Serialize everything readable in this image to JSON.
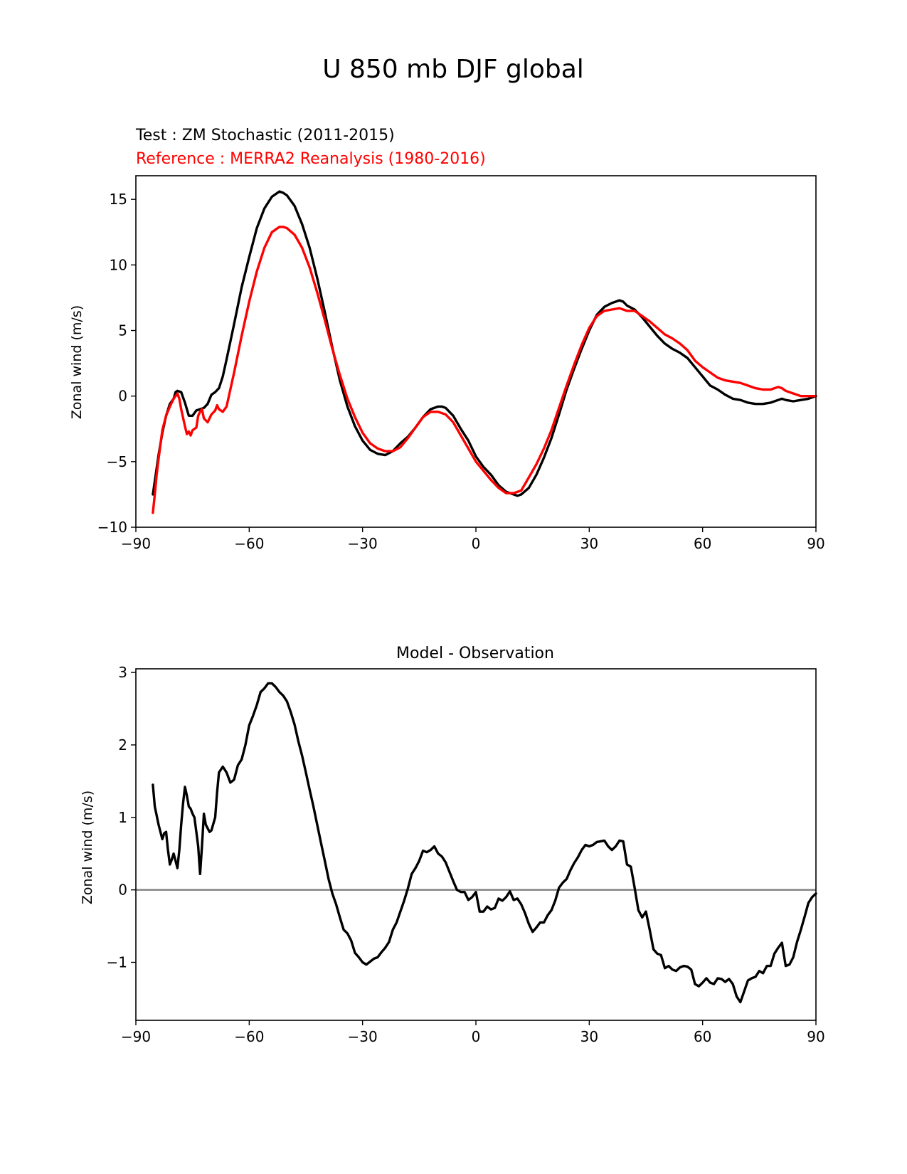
{
  "figure": {
    "title": "U 850 mb DJF global"
  },
  "chart_data": [
    {
      "type": "line",
      "title": "",
      "subtitle_test": "Test : ZM Stochastic (2011-2015)",
      "subtitle_reference": "Reference : MERRA2 Reanalysis (1980-2016)",
      "xlabel": "",
      "ylabel": "Zonal wind (m/s)",
      "xlim": [
        -90,
        90
      ],
      "ylim": [
        -10,
        16.8
      ],
      "xticks": [
        -90,
        -60,
        -30,
        0,
        30,
        60,
        90
      ],
      "xtick_labels": [
        "−90",
        "−60",
        "−30",
        "0",
        "30",
        "60",
        "90"
      ],
      "yticks": [
        -10,
        -5,
        0,
        5,
        10,
        15
      ],
      "ytick_labels": [
        "−10",
        "−5",
        "0",
        "5",
        "10",
        "15"
      ],
      "grid": false,
      "colors": {
        "test": "#000000",
        "reference": "#ff0000"
      },
      "series": [
        {
          "key": "test",
          "x": [
            -85.5,
            -85,
            -84,
            -83,
            -82,
            -81,
            -80,
            -79.5,
            -79,
            -78,
            -77,
            -76,
            -75,
            -74,
            -73,
            -72,
            -71,
            -70,
            -69,
            -68,
            -67,
            -66,
            -64,
            -62,
            -60,
            -58,
            -56,
            -54,
            -52,
            -51,
            -50,
            -48,
            -46,
            -44,
            -42,
            -40,
            -38,
            -36,
            -34,
            -32,
            -30,
            -28,
            -26,
            -24,
            -22,
            -21,
            -20,
            -18,
            -16,
            -14,
            -12,
            -10,
            -9,
            -8,
            -6,
            -4,
            -2,
            0,
            2,
            4,
            6,
            8,
            10,
            11,
            12,
            14,
            16,
            18,
            20,
            22,
            24,
            26,
            28,
            30,
            32,
            34,
            36,
            37,
            38,
            39,
            40,
            42,
            44,
            46,
            48,
            50,
            52,
            54,
            56,
            58,
            60,
            62,
            64,
            66,
            68,
            70,
            72,
            74,
            76,
            78,
            80,
            81,
            82,
            84,
            86,
            88,
            90
          ],
          "y": [
            -7.5,
            -6.5,
            -4.5,
            -2.8,
            -1.5,
            -0.6,
            -0.2,
            0.3,
            0.4,
            0.3,
            -0.5,
            -1.5,
            -1.5,
            -1.1,
            -1.0,
            -0.9,
            -0.6,
            0.1,
            0.3,
            0.6,
            1.5,
            2.8,
            5.5,
            8.3,
            10.6,
            12.8,
            14.3,
            15.2,
            15.6,
            15.5,
            15.3,
            14.5,
            13.1,
            11.3,
            9.0,
            6.4,
            3.7,
            1.2,
            -0.8,
            -2.3,
            -3.4,
            -4.1,
            -4.4,
            -4.5,
            -4.2,
            -3.9,
            -3.6,
            -3.1,
            -2.4,
            -1.6,
            -1.0,
            -0.8,
            -0.8,
            -0.9,
            -1.5,
            -2.5,
            -3.4,
            -4.6,
            -5.4,
            -6.0,
            -6.8,
            -7.3,
            -7.5,
            -7.6,
            -7.5,
            -7.0,
            -6.0,
            -4.7,
            -3.2,
            -1.4,
            0.5,
            2.1,
            3.6,
            5.0,
            6.2,
            6.8,
            7.1,
            7.2,
            7.3,
            7.2,
            6.9,
            6.6,
            6.0,
            5.3,
            4.6,
            4.0,
            3.6,
            3.3,
            2.9,
            2.2,
            1.5,
            0.8,
            0.5,
            0.1,
            -0.2,
            -0.3,
            -0.5,
            -0.6,
            -0.6,
            -0.5,
            -0.3,
            -0.2,
            -0.3,
            -0.4,
            -0.3,
            -0.2,
            0.0
          ]
        },
        {
          "key": "reference",
          "x": [
            -85.5,
            -85,
            -84.5,
            -84,
            -83,
            -82,
            -81,
            -80,
            -79,
            -78.5,
            -78,
            -77,
            -76.5,
            -76,
            -75.5,
            -75,
            -74,
            -73.5,
            -73,
            -72.5,
            -72,
            -71,
            -70,
            -69,
            -68.5,
            -68,
            -67,
            -66,
            -64,
            -62,
            -60,
            -58,
            -56,
            -54,
            -52,
            -51,
            -50,
            -48,
            -46,
            -44,
            -42,
            -40,
            -38,
            -36,
            -34,
            -32,
            -30,
            -28,
            -26,
            -24,
            -22,
            -20,
            -18,
            -16,
            -14,
            -12,
            -10,
            -8,
            -6,
            -4,
            -2,
            0,
            2,
            4,
            6,
            8,
            10,
            12,
            14,
            16,
            18,
            20,
            22,
            24,
            26,
            28,
            30,
            32,
            34,
            36,
            38,
            40,
            42,
            44,
            46,
            48,
            50,
            52,
            54,
            56,
            58,
            60,
            62,
            64,
            66,
            68,
            70,
            72,
            74,
            76,
            78,
            80,
            81,
            82,
            84,
            86,
            88,
            90
          ],
          "y": [
            -8.9,
            -7.5,
            -6.0,
            -4.8,
            -2.6,
            -1.5,
            -0.8,
            -0.2,
            0.2,
            -0.2,
            -1.0,
            -2.3,
            -2.9,
            -2.7,
            -3.0,
            -2.6,
            -2.4,
            -1.5,
            -1.2,
            -1.0,
            -1.7,
            -2.0,
            -1.4,
            -1.1,
            -0.7,
            -1.0,
            -1.2,
            -0.8,
            1.8,
            4.6,
            7.2,
            9.5,
            11.3,
            12.5,
            12.9,
            12.9,
            12.8,
            12.3,
            11.3,
            9.8,
            7.9,
            5.8,
            3.6,
            1.6,
            -0.2,
            -1.6,
            -2.8,
            -3.6,
            -4.0,
            -4.2,
            -4.2,
            -3.9,
            -3.2,
            -2.4,
            -1.6,
            -1.2,
            -1.2,
            -1.4,
            -2.0,
            -3.0,
            -4.0,
            -5.0,
            -5.7,
            -6.4,
            -7.0,
            -7.4,
            -7.4,
            -7.2,
            -6.2,
            -5.2,
            -4.0,
            -2.6,
            -0.9,
            0.8,
            2.4,
            3.9,
            5.2,
            6.1,
            6.5,
            6.6,
            6.7,
            6.5,
            6.5,
            6.1,
            5.7,
            5.2,
            4.7,
            4.4,
            4.0,
            3.5,
            2.7,
            2.2,
            1.8,
            1.4,
            1.2,
            1.1,
            1.0,
            0.8,
            0.6,
            0.5,
            0.5,
            0.7,
            0.6,
            0.4,
            0.2,
            0.0,
            0.0,
            0.0
          ]
        }
      ]
    },
    {
      "type": "line",
      "title": "Model - Observation",
      "xlabel": "",
      "ylabel": "Zonal wind (m/s)",
      "xlim": [
        -90,
        90
      ],
      "ylim": [
        -1.8,
        3.05
      ],
      "xticks": [
        -90,
        -60,
        -30,
        0,
        30,
        60,
        90
      ],
      "xtick_labels": [
        "−90",
        "−60",
        "−30",
        "0",
        "30",
        "60",
        "90"
      ],
      "yticks": [
        -1,
        0,
        1,
        2,
        3
      ],
      "ytick_labels": [
        "−1",
        "0",
        "1",
        "2",
        "3"
      ],
      "grid": false,
      "zero_line": {
        "y": 0,
        "color": "#808080"
      },
      "colors": {
        "difference": "#000000"
      },
      "series": [
        {
          "key": "difference",
          "x": [
            -85.5,
            -85,
            -84,
            -83,
            -82.5,
            -82,
            -81.5,
            -81,
            -80.5,
            -80,
            -79.5,
            -79,
            -78.5,
            -78,
            -77.5,
            -77,
            -76.5,
            -76,
            -75.5,
            -75,
            -74.5,
            -74,
            -73.5,
            -73,
            -72.5,
            -72,
            -71.5,
            -71,
            -70.5,
            -70,
            -69,
            -68.5,
            -68,
            -67,
            -66,
            -65,
            -64,
            -63,
            -62,
            -61,
            -60,
            -59,
            -58,
            -57,
            -56,
            -55,
            -54,
            -53,
            -52,
            -51,
            -50,
            -49,
            -48,
            -47,
            -46,
            -45,
            -44,
            -43,
            -42,
            -41,
            -40,
            -39,
            -38,
            -37,
            -36,
            -35,
            -34,
            -33,
            -32,
            -31,
            -30,
            -29,
            -28,
            -27,
            -26,
            -25,
            -24,
            -23,
            -22,
            -21,
            -20,
            -19,
            -18,
            -17,
            -16,
            -15,
            -14,
            -13,
            -12,
            -11,
            -10,
            -9,
            -8,
            -7,
            -6,
            -5,
            -4,
            -3,
            -2,
            -1,
            0,
            1,
            2,
            3,
            4,
            5,
            6,
            7,
            8,
            9,
            10,
            11,
            12,
            13,
            14,
            15,
            16,
            17,
            18,
            19,
            20,
            21,
            22,
            23,
            24,
            25,
            26,
            27,
            28,
            29,
            30,
            31,
            32,
            33,
            34,
            35,
            36,
            37,
            38,
            39,
            40,
            41,
            42,
            43,
            44,
            45,
            46,
            47,
            48,
            49,
            50,
            51,
            52,
            53,
            54,
            55,
            56,
            57,
            58,
            59,
            60,
            61,
            62,
            63,
            64,
            65,
            66,
            67,
            68,
            69,
            70,
            71,
            72,
            73,
            74,
            75,
            76,
            77,
            78,
            79,
            80,
            81,
            82,
            83,
            84,
            85,
            86,
            87,
            88,
            89,
            90
          ],
          "y": [
            1.45,
            1.15,
            0.9,
            0.7,
            0.78,
            0.8,
            0.55,
            0.35,
            0.42,
            0.5,
            0.4,
            0.3,
            0.55,
            0.9,
            1.2,
            1.42,
            1.3,
            1.15,
            1.12,
            1.05,
            1.0,
            0.8,
            0.6,
            0.22,
            0.6,
            1.05,
            0.9,
            0.85,
            0.8,
            0.82,
            1.0,
            1.35,
            1.62,
            1.7,
            1.62,
            1.48,
            1.52,
            1.72,
            1.8,
            2.0,
            2.27,
            2.4,
            2.55,
            2.73,
            2.78,
            2.85,
            2.85,
            2.8,
            2.73,
            2.68,
            2.6,
            2.45,
            2.28,
            2.05,
            1.85,
            1.62,
            1.38,
            1.15,
            0.9,
            0.65,
            0.4,
            0.15,
            -0.05,
            -0.2,
            -0.38,
            -0.55,
            -0.6,
            -0.7,
            -0.87,
            -0.93,
            -1.0,
            -1.03,
            -0.99,
            -0.95,
            -0.93,
            -0.86,
            -0.8,
            -0.72,
            -0.55,
            -0.45,
            -0.3,
            -0.15,
            0.02,
            0.22,
            0.3,
            0.4,
            0.54,
            0.52,
            0.55,
            0.6,
            0.5,
            0.46,
            0.38,
            0.25,
            0.12,
            0.0,
            -0.03,
            -0.03,
            -0.14,
            -0.1,
            -0.03,
            -0.3,
            -0.3,
            -0.23,
            -0.27,
            -0.25,
            -0.12,
            -0.15,
            -0.1,
            -0.02,
            -0.14,
            -0.12,
            -0.2,
            -0.32,
            -0.47,
            -0.58,
            -0.52,
            -0.45,
            -0.45,
            -0.35,
            -0.28,
            -0.15,
            0.03,
            0.1,
            0.15,
            0.27,
            0.37,
            0.45,
            0.55,
            0.62,
            0.6,
            0.62,
            0.66,
            0.67,
            0.68,
            0.6,
            0.55,
            0.6,
            0.68,
            0.67,
            0.35,
            0.32,
            0.03,
            -0.28,
            -0.38,
            -0.3,
            -0.55,
            -0.82,
            -0.88,
            -0.9,
            -1.08,
            -1.05,
            -1.1,
            -1.12,
            -1.07,
            -1.05,
            -1.06,
            -1.1,
            -1.3,
            -1.33,
            -1.28,
            -1.22,
            -1.28,
            -1.3,
            -1.22,
            -1.23,
            -1.27,
            -1.23,
            -1.3,
            -1.47,
            -1.55,
            -1.4,
            -1.25,
            -1.22,
            -1.2,
            -1.12,
            -1.15,
            -1.05,
            -1.05,
            -0.88,
            -0.8,
            -0.73,
            -1.05,
            -1.03,
            -0.93,
            -0.72,
            -0.55,
            -0.37,
            -0.18,
            -0.1,
            -0.05
          ]
        }
      ]
    }
  ]
}
